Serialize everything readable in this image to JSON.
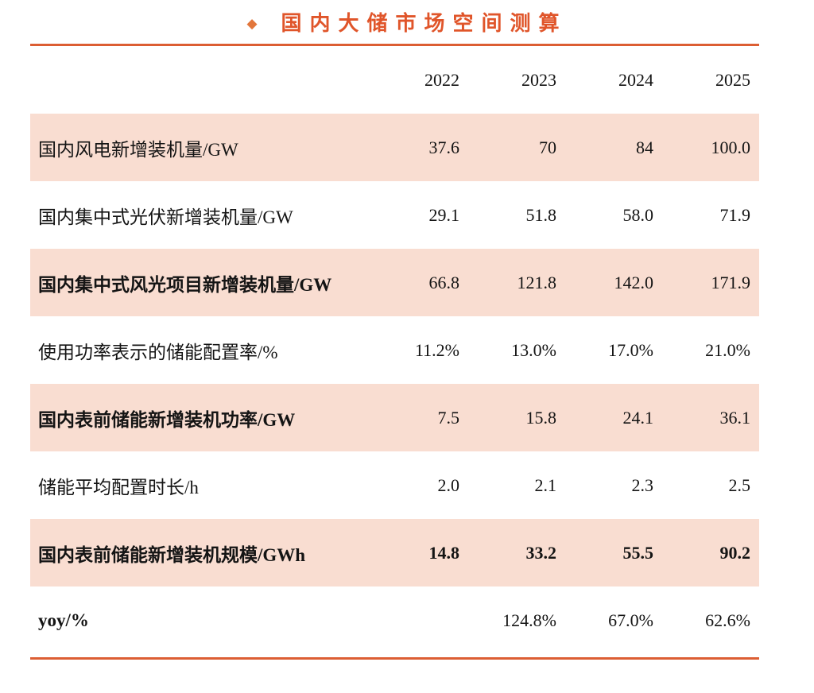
{
  "title": {
    "bullet": "◆",
    "text": "国内大储市场空间测算"
  },
  "colors": {
    "title_orange": "#e0552a",
    "diamond_orange": "#e2763b",
    "rule_orange": "#dc5e33",
    "row_highlight_pink": "#f9ddd1",
    "text_black": "#141414"
  },
  "table": {
    "year_headers": [
      "2022",
      "2023",
      "2024",
      "2025"
    ],
    "rows": [
      {
        "label": "国内风电新增装机量/GW",
        "values": [
          "37.6",
          "70",
          "84",
          "100.0"
        ]
      },
      {
        "label": "国内集中式光伏新增装机量/GW",
        "values": [
          "29.1",
          "51.8",
          "58.0",
          "71.9"
        ]
      },
      {
        "label": "国内集中式风光项目新增装机量/GW",
        "values": [
          "66.8",
          "121.8",
          "142.0",
          "171.9"
        ]
      },
      {
        "label": "使用功率表示的储能配置率/%",
        "values": [
          "11.2%",
          "13.0%",
          "17.0%",
          "21.0%"
        ]
      },
      {
        "label": "国内表前储能新增装机功率/GW",
        "values": [
          "7.5",
          "15.8",
          "24.1",
          "36.1"
        ]
      },
      {
        "label": "储能平均配置时长/h",
        "values": [
          "2.0",
          "2.1",
          "2.3",
          "2.5"
        ]
      },
      {
        "label": "国内表前储能新增装机规模/GWh",
        "values": [
          "14.8",
          "33.2",
          "55.5",
          "90.2"
        ]
      },
      {
        "label": "yoy/%",
        "values": [
          "",
          "124.8%",
          "67.0%",
          "62.6%"
        ]
      }
    ]
  },
  "chart_data": {
    "type": "table",
    "title": "国内大储市场空间测算",
    "columns": [
      "2022",
      "2023",
      "2024",
      "2025"
    ],
    "rows": [
      {
        "metric": "国内风电新增装机量/GW",
        "values": [
          37.6,
          70,
          84,
          100.0
        ]
      },
      {
        "metric": "国内集中式光伏新增装机量/GW",
        "values": [
          29.1,
          51.8,
          58.0,
          71.9
        ]
      },
      {
        "metric": "国内集中式风光项目新增装机量/GW",
        "values": [
          66.8,
          121.8,
          142.0,
          171.9
        ]
      },
      {
        "metric": "使用功率表示的储能配置率/%",
        "values": [
          "11.2%",
          "13.0%",
          "17.0%",
          "21.0%"
        ]
      },
      {
        "metric": "国内表前储能新增装机功率/GW",
        "values": [
          7.5,
          15.8,
          24.1,
          36.1
        ]
      },
      {
        "metric": "储能平均配置时长/h",
        "values": [
          2.0,
          2.1,
          2.3,
          2.5
        ]
      },
      {
        "metric": "国内表前储能新增装机规模/GWh",
        "values": [
          14.8,
          33.2,
          55.5,
          90.2
        ]
      },
      {
        "metric": "yoy/%",
        "values": [
          null,
          "124.8%",
          "67.0%",
          "62.6%"
        ]
      }
    ],
    "layout": {
      "highlighted_row_indexes": [
        0,
        2,
        4,
        6
      ],
      "bold_label_row_indexes": [
        2,
        4,
        6,
        7
      ],
      "bold_value_row_indexes": [
        6
      ]
    }
  }
}
